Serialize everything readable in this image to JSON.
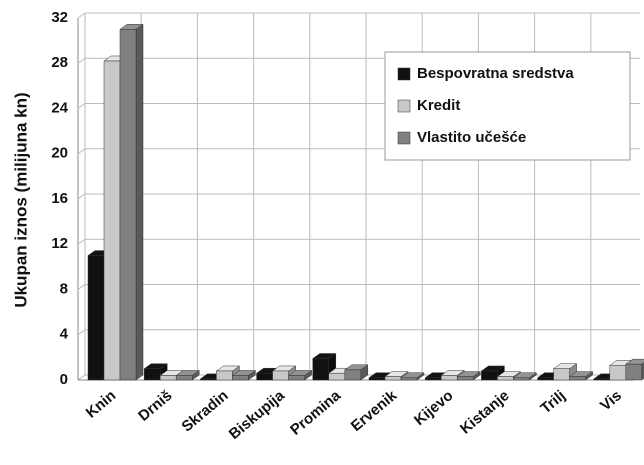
{
  "chart_data": {
    "type": "bar3d",
    "y_label": "Ukupan iznos (milijuna kn)",
    "categories": [
      "Knin",
      "Drniš",
      "Skradin",
      "Biskupija",
      "Promina",
      "Ervenik",
      "Kijevo",
      "Kistanje",
      "Trilj",
      "Vis"
    ],
    "series": [
      {
        "name": "Bespovratna sredstva",
        "color": "#111111",
        "values": [
          11,
          1.0,
          0.1,
          0.6,
          1.9,
          0.2,
          0.2,
          0.8,
          0.2,
          0.1
        ]
      },
      {
        "name": "Kredit",
        "color": "#c8c8c8",
        "values": [
          28.2,
          0.4,
          0.8,
          0.8,
          0.6,
          0.3,
          0.4,
          0.3,
          1.0,
          1.3
        ]
      },
      {
        "name": "Vlastito učešće",
        "color": "#808080",
        "values": [
          31,
          0.4,
          0.4,
          0.4,
          0.9,
          0.2,
          0.3,
          0.2,
          0.3,
          1.4
        ]
      }
    ],
    "ylim": [
      0,
      32
    ],
    "yticks": [
      0,
      4,
      8,
      12,
      16,
      20,
      24,
      28,
      32
    ],
    "grid": true
  }
}
